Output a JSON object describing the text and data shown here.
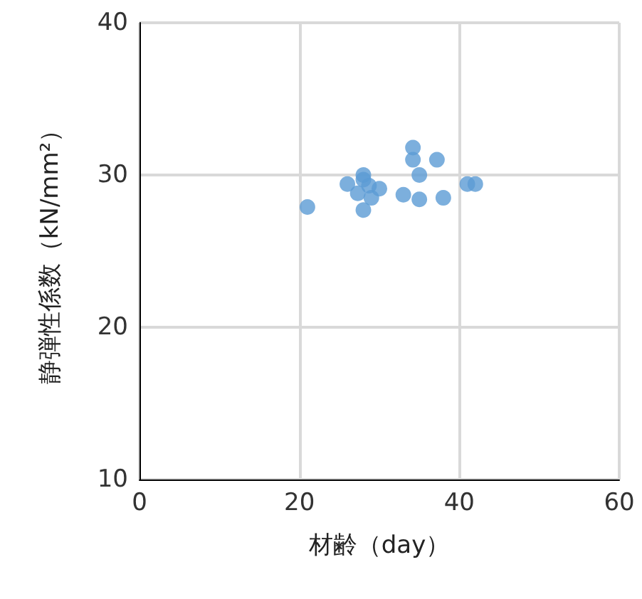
{
  "chart_data": {
    "type": "scatter",
    "xlabel": "材齢（day）",
    "ylabel": "静弾性係数（kN/mm²）",
    "x": [
      21,
      26,
      28,
      28,
      27.3,
      29,
      30,
      28,
      28.7,
      33,
      34.2,
      34.2,
      35,
      35,
      37.2,
      38,
      41,
      42
    ],
    "series": [
      {
        "color": "#5b9bd5",
        "values": [
          27.9,
          29.4,
          30,
          29.7,
          28.8,
          28.5,
          29.1,
          27.7,
          29.3,
          28.7,
          31.8,
          31,
          30,
          28.4,
          31,
          28.5,
          29.4,
          29.4
        ]
      }
    ],
    "xlim": [
      0,
      60
    ],
    "xticks": [
      0,
      20,
      40,
      60
    ],
    "ylim": [
      10,
      40
    ],
    "yticks": [
      10,
      20,
      30,
      40
    ],
    "grid": true,
    "marker": "circle"
  }
}
